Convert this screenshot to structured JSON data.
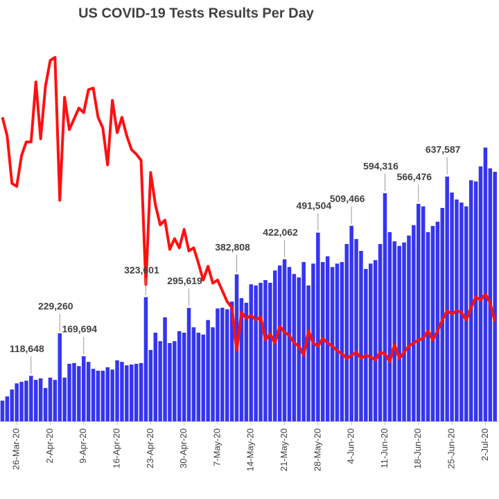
{
  "chart_data": {
    "type": "bar",
    "title": "US COVID-19 Tests Results Per Day",
    "categories": [
      null,
      null,
      null,
      "26-Mar-20",
      null,
      null,
      null,
      null,
      null,
      null,
      "2-Apr-20",
      null,
      null,
      null,
      null,
      null,
      null,
      "9-Apr-20",
      null,
      null,
      null,
      null,
      null,
      null,
      "16-Apr-20",
      null,
      null,
      null,
      null,
      null,
      null,
      "23-Apr-20",
      null,
      null,
      null,
      null,
      null,
      null,
      "30-Apr-20",
      null,
      null,
      null,
      null,
      null,
      null,
      "7-May-20",
      null,
      null,
      null,
      null,
      null,
      null,
      "14-May-20",
      null,
      null,
      null,
      null,
      null,
      null,
      "21-May-20",
      null,
      null,
      null,
      null,
      null,
      null,
      "28-May-20",
      null,
      null,
      null,
      null,
      null,
      null,
      "4-Jun-20",
      null,
      null,
      null,
      null,
      null,
      null,
      "11-Jun-20",
      null,
      null,
      null,
      null,
      null,
      null,
      "18-Jun-20",
      null,
      null,
      null,
      null,
      null,
      null,
      "25-Jun-20",
      null,
      null,
      null,
      null,
      null,
      null,
      "2-Jul-20",
      null,
      null
    ],
    "ylim": [
      0,
      1000000
    ],
    "y2lim": [
      0,
      25
    ],
    "series": [
      {
        "type": "bar",
        "color": "#3535f0",
        "values": [
          54000,
          65000,
          83000,
          99000,
          103000,
          106000,
          118648,
          108000,
          112000,
          87000,
          114000,
          108000,
          229260,
          114000,
          150000,
          152000,
          144000,
          169694,
          155000,
          137000,
          132000,
          132000,
          141000,
          135000,
          159000,
          155000,
          146000,
          148000,
          150000,
          152000,
          323601,
          186000,
          231000,
          209000,
          271000,
          204000,
          209000,
          235000,
          231000,
          295619,
          245000,
          231000,
          226000,
          264000,
          245000,
          294000,
          296000,
          292000,
          312000,
          382808,
          321000,
          309000,
          357000,
          354000,
          361000,
          368000,
          361000,
          393000,
          406000,
          422062,
          402000,
          384000,
          375000,
          415000,
          354000,
          411000,
          491504,
          415000,
          430000,
          402000,
          411000,
          415000,
          462000,
          509466,
          475000,
          444000,
          397000,
          411000,
          420000,
          462000,
          594316,
          493000,
          469000,
          457000,
          466000,
          484000,
          511000,
          566476,
          560000,
          493000,
          509000,
          520000,
          556000,
          637587,
          596000,
          578000,
          570000,
          560000,
          628000,
          625000,
          664000,
          713000,
          659000,
          650000
        ],
        "value_labels": [
          null,
          null,
          null,
          null,
          null,
          null,
          "118,648",
          null,
          null,
          null,
          null,
          null,
          "229,260",
          null,
          null,
          null,
          null,
          "169,694",
          null,
          null,
          null,
          null,
          null,
          null,
          null,
          null,
          null,
          null,
          null,
          null,
          "323,601",
          null,
          null,
          null,
          null,
          null,
          null,
          null,
          null,
          "295,619",
          null,
          null,
          null,
          null,
          null,
          null,
          null,
          null,
          null,
          "382,808",
          null,
          null,
          null,
          null,
          null,
          null,
          null,
          null,
          null,
          "422,062",
          null,
          null,
          null,
          null,
          null,
          null,
          "491,504",
          null,
          null,
          null,
          null,
          null,
          null,
          "509,466",
          null,
          null,
          null,
          null,
          null,
          null,
          "594,316",
          null,
          null,
          null,
          null,
          null,
          null,
          "566,476",
          null,
          null,
          null,
          null,
          null,
          "637,587",
          null,
          null,
          null,
          null,
          null,
          null,
          null,
          null,
          null,
          null
        ]
      },
      {
        "type": "line",
        "axis": "y2",
        "color": "#ff1010",
        "values": [
          19.8,
          18.6,
          15.5,
          15.3,
          17.3,
          18.2,
          18.2,
          22.1,
          18.4,
          21.8,
          23.5,
          23.7,
          14.4,
          21.1,
          19.0,
          19.7,
          20.4,
          20.1,
          21.6,
          21.7,
          19.8,
          19.1,
          16.7,
          20.9,
          18.8,
          19.8,
          18.6,
          17.7,
          17.4,
          17.0,
          8.9,
          16.2,
          14.1,
          12.8,
          13.1,
          11.2,
          11.9,
          11.3,
          12.5,
          11.1,
          11.3,
          10.3,
          9.2,
          10.1,
          9.0,
          9.2,
          8.5,
          7.8,
          7.4,
          4.6,
          7.1,
          6.7,
          6.9,
          6.6,
          6.8,
          5.3,
          5.7,
          5.1,
          6.2,
          5.8,
          5.6,
          5.1,
          4.9,
          4.3,
          5.9,
          5.1,
          4.9,
          5.4,
          5.1,
          4.9,
          4.6,
          4.4,
          4.1,
          4.3,
          4.5,
          4.1,
          4.3,
          4.2,
          4.0,
          4.5,
          4.4,
          3.9,
          5.0,
          4.1,
          4.5,
          4.9,
          5.1,
          5.3,
          5.4,
          5.9,
          5.3,
          5.9,
          6.6,
          7.2,
          7.0,
          7.2,
          7.1,
          6.6,
          7.4,
          8.1,
          7.9,
          8.3,
          7.7,
          6.5
        ]
      }
    ]
  }
}
